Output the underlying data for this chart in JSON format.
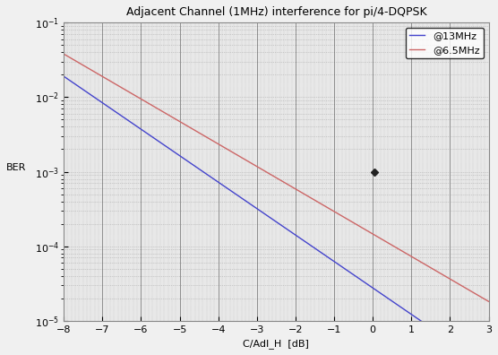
{
  "title": "Adjacent Channel (1MHz) interference for pi/4-DQPSK",
  "xlabel": "C/AdI_H  [dB]",
  "ylabel": "BER",
  "xlim": [
    -8,
    3
  ],
  "ylim_log": [
    -5,
    -1
  ],
  "legend_labels": [
    "@13MHz",
    "@6.5MHz"
  ],
  "line_colors": [
    "#4444cc",
    "#cc6666"
  ],
  "blue_slope": -0.355,
  "blue_intercept_x0": -8,
  "blue_y_at_x0_log": -1.72,
  "red_slope": -0.302,
  "red_intercept_x0": -8,
  "red_y_at_x0_log": -1.42,
  "marker_x": 0.05,
  "marker_y_log": -3.0,
  "marker_color": "#222222",
  "plot_bg_color": "#e8e8e8",
  "fig_bg_color": "#f0f0f0",
  "grid_color_dotted": "#aaaaaa",
  "solid_vline_color": "#555555",
  "title_fontsize": 9,
  "label_fontsize": 8,
  "tick_fontsize": 8,
  "legend_fontsize": 8
}
